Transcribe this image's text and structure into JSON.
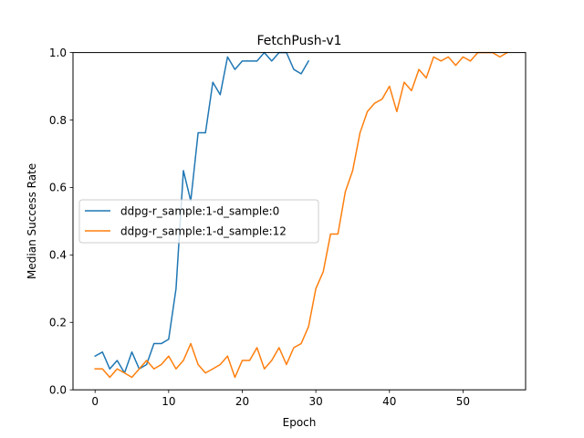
{
  "chart_data": {
    "type": "line",
    "title": "FetchPush-v1",
    "xlabel": "Epoch",
    "ylabel": "Median Success Rate",
    "xlim": [
      -3,
      58.5
    ],
    "ylim": [
      0,
      1.0
    ],
    "xticks": [
      0,
      10,
      20,
      30,
      40,
      50
    ],
    "yticks": [
      0.0,
      0.2,
      0.4,
      0.6,
      0.8,
      1.0
    ],
    "xtick_labels": [
      "0",
      "10",
      "20",
      "30",
      "40",
      "50"
    ],
    "ytick_labels": [
      "0.0",
      "0.2",
      "0.4",
      "0.6",
      "0.8",
      "1.0"
    ],
    "grid": false,
    "legend_position": "center-left",
    "series": [
      {
        "name": "ddpg-r_sample:1-d_sample:0",
        "color": "#1f77b4",
        "x": [
          0,
          1,
          2,
          3,
          4,
          5,
          6,
          7,
          8,
          9,
          10,
          11,
          12,
          13,
          14,
          15,
          16,
          17,
          18,
          19,
          20,
          21,
          22,
          23,
          24,
          25,
          26,
          27,
          28,
          29
        ],
        "y": [
          0.1,
          0.112,
          0.062,
          0.087,
          0.05,
          0.112,
          0.062,
          0.075,
          0.137,
          0.137,
          0.15,
          0.3,
          0.65,
          0.56,
          0.762,
          0.762,
          0.912,
          0.875,
          0.987,
          0.95,
          0.975,
          0.975,
          0.975,
          1.0,
          0.975,
          1.0,
          1.0,
          0.95,
          0.937,
          0.975
        ]
      },
      {
        "name": "ddpg-r_sample:1-d_sample:12",
        "color": "#ff7f0e",
        "x": [
          0,
          1,
          2,
          3,
          4,
          5,
          6,
          7,
          8,
          9,
          10,
          11,
          12,
          13,
          14,
          15,
          16,
          17,
          18,
          19,
          20,
          21,
          22,
          23,
          24,
          25,
          26,
          27,
          28,
          29,
          30,
          31,
          32,
          33,
          34,
          35,
          36,
          37,
          38,
          39,
          40,
          41,
          42,
          43,
          44,
          45,
          46,
          47,
          48,
          49,
          50,
          51,
          52,
          53,
          54,
          55,
          56
        ],
        "y": [
          0.062,
          0.062,
          0.037,
          0.062,
          0.05,
          0.037,
          0.062,
          0.087,
          0.062,
          0.075,
          0.1,
          0.062,
          0.087,
          0.137,
          0.075,
          0.05,
          0.062,
          0.075,
          0.1,
          0.037,
          0.087,
          0.087,
          0.125,
          0.062,
          0.087,
          0.125,
          0.075,
          0.125,
          0.137,
          0.187,
          0.3,
          0.35,
          0.462,
          0.462,
          0.587,
          0.65,
          0.762,
          0.825,
          0.85,
          0.862,
          0.9,
          0.825,
          0.912,
          0.887,
          0.95,
          0.925,
          0.987,
          0.975,
          0.987,
          0.962,
          0.987,
          0.975,
          1.0,
          1.0,
          1.0,
          0.987,
          1.0
        ]
      }
    ]
  }
}
